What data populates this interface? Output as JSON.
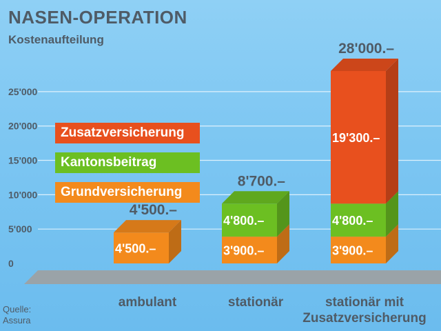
{
  "title": "NASEN-OPERATION",
  "subtitle": "Kostenaufteilung",
  "source": "Quelle: Assura",
  "legend": [
    {
      "label": "Zusatzversicherung",
      "color": "#e8501e"
    },
    {
      "label": "Kantonsbeitrag",
      "color": "#6cbf22"
    },
    {
      "label": "Grundversicherung",
      "color": "#f38a1c"
    }
  ],
  "chart_data": {
    "type": "bar",
    "stacked": true,
    "title": "NASEN-OPERATION",
    "subtitle": "Kostenaufteilung",
    "categories": [
      "ambulant",
      "stationär",
      "stationär mit Zusatzversicherung"
    ],
    "series": [
      {
        "name": "Grundversicherung",
        "color": "#f38a1c",
        "values": [
          4500,
          3900,
          3900
        ],
        "labels": [
          "4'500.–",
          "3'900.–",
          "3'900.–"
        ]
      },
      {
        "name": "Kantonsbeitrag",
        "color": "#6cbf22",
        "values": [
          0,
          4800,
          4800
        ],
        "labels": [
          "",
          "4'800.–",
          "4'800.–"
        ]
      },
      {
        "name": "Zusatzversicherung",
        "color": "#e8501e",
        "values": [
          0,
          0,
          19300
        ],
        "labels": [
          "",
          "",
          "19'300.–"
        ]
      }
    ],
    "totals": [
      4500,
      8700,
      28000
    ],
    "total_labels": [
      "4'500.–",
      "8'700.–",
      "28'000.–"
    ],
    "yticks": [
      0,
      5000,
      10000,
      15000,
      20000,
      25000
    ],
    "ytick_labels": [
      "0",
      "5'000",
      "10'000",
      "15'000",
      "20'000",
      "25'000"
    ],
    "ylim": [
      0,
      28000
    ],
    "grid": true,
    "legend_position": "left"
  }
}
